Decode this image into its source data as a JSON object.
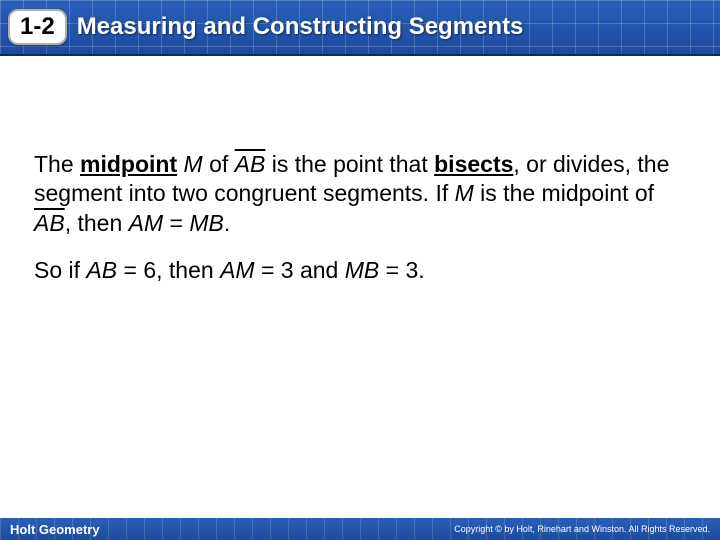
{
  "header": {
    "lesson_number": "1-2",
    "title": "Measuring and Constructing Segments",
    "bg_gradient_top": "#2a5fb8",
    "bg_gradient_bottom": "#1e4a9e"
  },
  "content": {
    "para1_part1": "The ",
    "para1_midpoint": "midpoint",
    "para1_part2": " ",
    "para1_M": "M",
    "para1_part3": " of ",
    "para1_AB1": "AB",
    "para1_part4": " is the point that ",
    "para1_bisects": "bisects",
    "para1_part5": ", or divides, the segment into two congruent segments. If ",
    "para1_M2": "M",
    "para1_part6": " is the midpoint of ",
    "para1_AB2": "AB",
    "para1_part7": ", then ",
    "para1_AM": "AM",
    "para1_part8": " = ",
    "para1_MB": "MB",
    "para1_part9": ".",
    "para2_part1": "So if ",
    "para2_AB": "AB",
    "para2_part2": " = 6, then ",
    "para2_AM": "AM",
    "para2_part3": " = 3 and ",
    "para2_MB": "MB",
    "para2_part4": " = 3."
  },
  "footer": {
    "left": "Holt Geometry",
    "right": "Copyright © by Holt, Rinehart and Winston. All Rights Reserved."
  }
}
